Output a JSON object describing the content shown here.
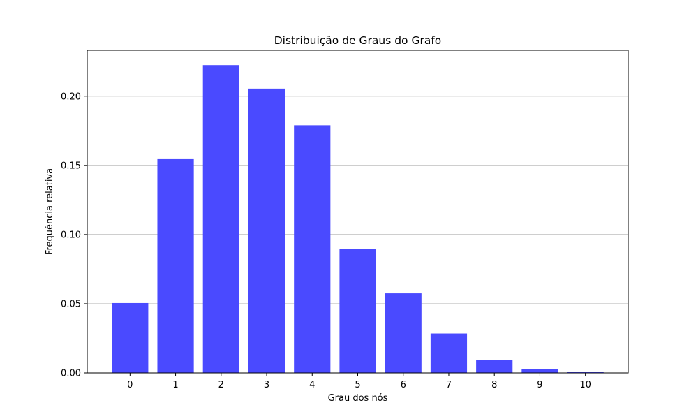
{
  "chart_data": {
    "type": "bar",
    "title": "Distribuição de Graus do Grafo",
    "xlabel": "Grau dos nós",
    "ylabel": "Frequência relativa",
    "categories": [
      "0",
      "1",
      "2",
      "3",
      "4",
      "5",
      "6",
      "7",
      "8",
      "9",
      "10"
    ],
    "values": [
      0.0505,
      0.155,
      0.2225,
      0.2055,
      0.179,
      0.0895,
      0.0575,
      0.0285,
      0.0095,
      0.003,
      0.0008
    ],
    "ylim": [
      0,
      0.2332
    ],
    "yticks": [
      "0.00",
      "0.05",
      "0.10",
      "0.15",
      "0.20"
    ],
    "ytick_values": [
      0,
      0.05,
      0.1,
      0.15,
      0.2
    ],
    "grid": "horizontal",
    "bar_color": "#4a4aff",
    "grid_color": "#b0b0b0"
  }
}
